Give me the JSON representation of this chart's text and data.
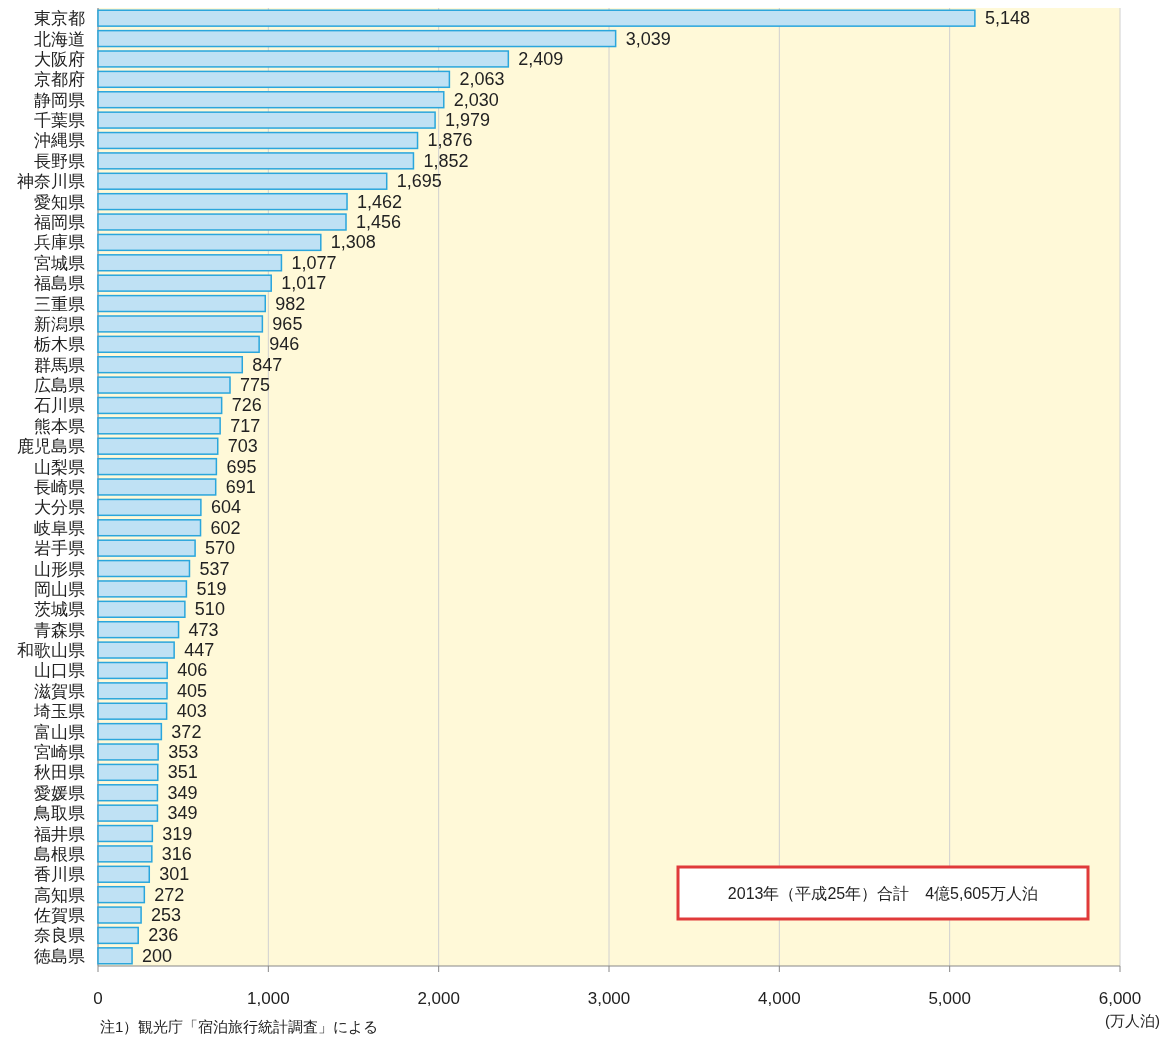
{
  "chart_data": {
    "type": "bar",
    "orientation": "horizontal",
    "categories": [
      "東京都",
      "北海道",
      "大阪府",
      "京都府",
      "静岡県",
      "千葉県",
      "沖縄県",
      "長野県",
      "神奈川県",
      "愛知県",
      "福岡県",
      "兵庫県",
      "宮城県",
      "福島県",
      "三重県",
      "新潟県",
      "栃木県",
      "群馬県",
      "広島県",
      "石川県",
      "熊本県",
      "鹿児島県",
      "山梨県",
      "長崎県",
      "大分県",
      "岐阜県",
      "岩手県",
      "山形県",
      "岡山県",
      "茨城県",
      "青森県",
      "和歌山県",
      "山口県",
      "滋賀県",
      "埼玉県",
      "富山県",
      "宮崎県",
      "秋田県",
      "愛媛県",
      "鳥取県",
      "福井県",
      "島根県",
      "香川県",
      "高知県",
      "佐賀県",
      "奈良県",
      "徳島県"
    ],
    "values": [
      5148,
      3039,
      2409,
      2063,
      2030,
      1979,
      1876,
      1852,
      1695,
      1462,
      1456,
      1308,
      1077,
      1017,
      982,
      965,
      946,
      847,
      775,
      726,
      717,
      703,
      695,
      691,
      604,
      602,
      570,
      537,
      519,
      510,
      473,
      447,
      406,
      405,
      403,
      372,
      353,
      351,
      349,
      349,
      319,
      316,
      301,
      272,
      253,
      236,
      200
    ],
    "color": "#bfe1f4",
    "value_labels": [
      "5,148",
      "3,039",
      "2,409",
      "2,063",
      "2,030",
      "1,979",
      "1,876",
      "1,852",
      "1,695",
      "1,462",
      "1,456",
      "1,308",
      "1,077",
      "1,017",
      "982",
      "965",
      "946",
      "847",
      "775",
      "726",
      "717",
      "703",
      "695",
      "691",
      "604",
      "602",
      "570",
      "537",
      "519",
      "510",
      "473",
      "447",
      "406",
      "405",
      "403",
      "372",
      "353",
      "351",
      "349",
      "349",
      "319",
      "316",
      "301",
      "272",
      "253",
      "236",
      "200"
    ],
    "xlim": [
      0,
      6000
    ],
    "xticks": [
      0,
      {
        "value": 1000,
        "label": "1,000"
      },
      {
        "value": 2000,
        "label": "2,000"
      },
      {
        "value": 3000,
        "label": "3,000"
      },
      {
        "value": 4000,
        "label": "4,000"
      },
      {
        "value": 5000,
        "label": "5,000"
      },
      {
        "value": 6000,
        "label": "6,000"
      }
    ],
    "xlabel": "(万人泊)",
    "grid": "x",
    "annotations": [
      "2013年（平成25年）合計　4億5,605万人泊",
      "注1）観光庁「宿泊旅行統計調査」による"
    ]
  }
}
